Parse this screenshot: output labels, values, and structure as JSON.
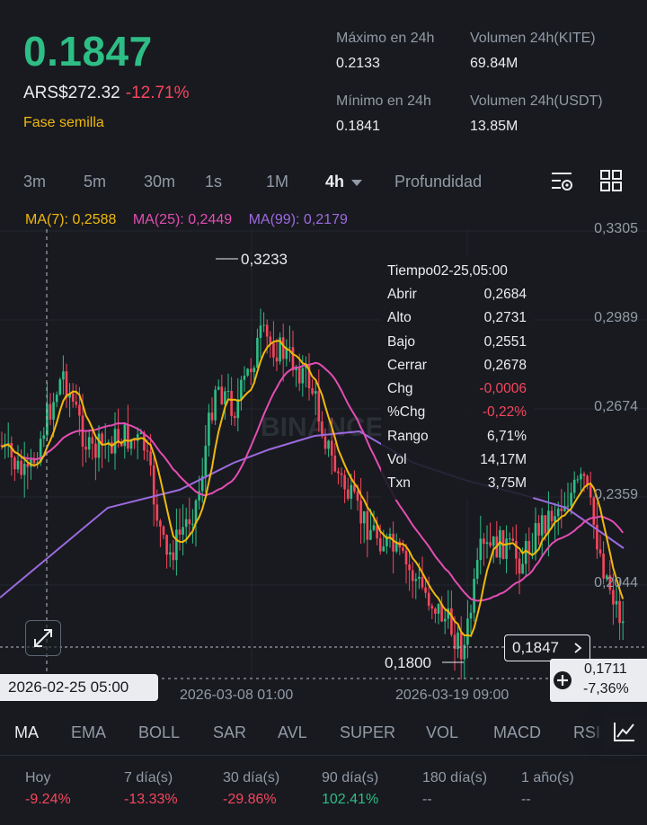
{
  "header": {
    "price": "0.1847",
    "fiat_price": "ARS$272.32",
    "change_pct": "-12.71%",
    "phase": "Fase semilla",
    "stats": [
      {
        "label": "Máximo en 24h",
        "value": "0.2133"
      },
      {
        "label": "Volumen 24h(KITE)",
        "value": "69.84M"
      },
      {
        "label": "Mínimo en 24h",
        "value": "0.1841"
      },
      {
        "label": "Volumen 24h(USDT)",
        "value": "13.85M"
      }
    ]
  },
  "intervals": [
    "3m",
    "5m",
    "30m",
    "1s",
    "1M",
    "4h",
    "Profundidad"
  ],
  "active_interval": "4h",
  "chart": {
    "ma_legend": [
      {
        "label": "MA(7): 0,2588",
        "color": "#f0b90b"
      },
      {
        "label": "MA(25): 0,2449",
        "color": "#e44db2"
      },
      {
        "label": "MA(99): 0,2179",
        "color": "#9c6ade"
      }
    ],
    "y_labels": [
      "0,3305",
      "0,2989",
      "0,2674",
      "0,2359",
      "0,2044"
    ],
    "high_label": "0,3233",
    "low_label": "0,1800",
    "current_price_label": "0,1847",
    "crosshair_price": "0,1711",
    "crosshair_pct": "-7,36%",
    "crosshair_time": "2026-02-25 05:00",
    "x_labels": [
      "2026-03-08 01:00",
      "2026-03-19 09:00"
    ],
    "watermark": "BINANCE"
  },
  "tooltip": {
    "time_label": "Tiempo",
    "time_value": "02-25,05:00",
    "rows": [
      {
        "k": "Abrir",
        "v": "0,2684"
      },
      {
        "k": "Alto",
        "v": "0,2731"
      },
      {
        "k": "Bajo",
        "v": "0,2551"
      },
      {
        "k": "Cerrar",
        "v": "0,2678"
      },
      {
        "k": "Chg",
        "v": "-0,0006"
      },
      {
        "k": "%Chg",
        "v": "-0,22%"
      },
      {
        "k": "Rango",
        "v": "6,71%"
      },
      {
        "k": "Vol",
        "v": "14,17M"
      },
      {
        "k": "Txn",
        "v": "3,75M"
      }
    ]
  },
  "indicators": [
    "MA",
    "EMA",
    "BOLL",
    "SAR",
    "AVL",
    "SUPER",
    "VOL",
    "MACD",
    "RSI"
  ],
  "active_indicator": "MA",
  "performance": [
    {
      "label": "Hoy",
      "value": "-9.24%"
    },
    {
      "label": "7 día(s)",
      "value": "-13.33%"
    },
    {
      "label": "30 día(s)",
      "value": "-29.86%"
    },
    {
      "label": "90 día(s)",
      "value": "102.41%"
    },
    {
      "label": "180 día(s)",
      "value": "--"
    },
    {
      "label": "1 año(s)",
      "value": "--"
    }
  ],
  "colors": {
    "up": "#2ebd85",
    "down": "#f6465d",
    "accent": "#f0b90b"
  },
  "icons": [
    "chart-settings-icon",
    "grid-layout-icon",
    "expand-icon",
    "plus-circle-icon",
    "chevron-right-icon",
    "drawing-tool-icon"
  ]
}
